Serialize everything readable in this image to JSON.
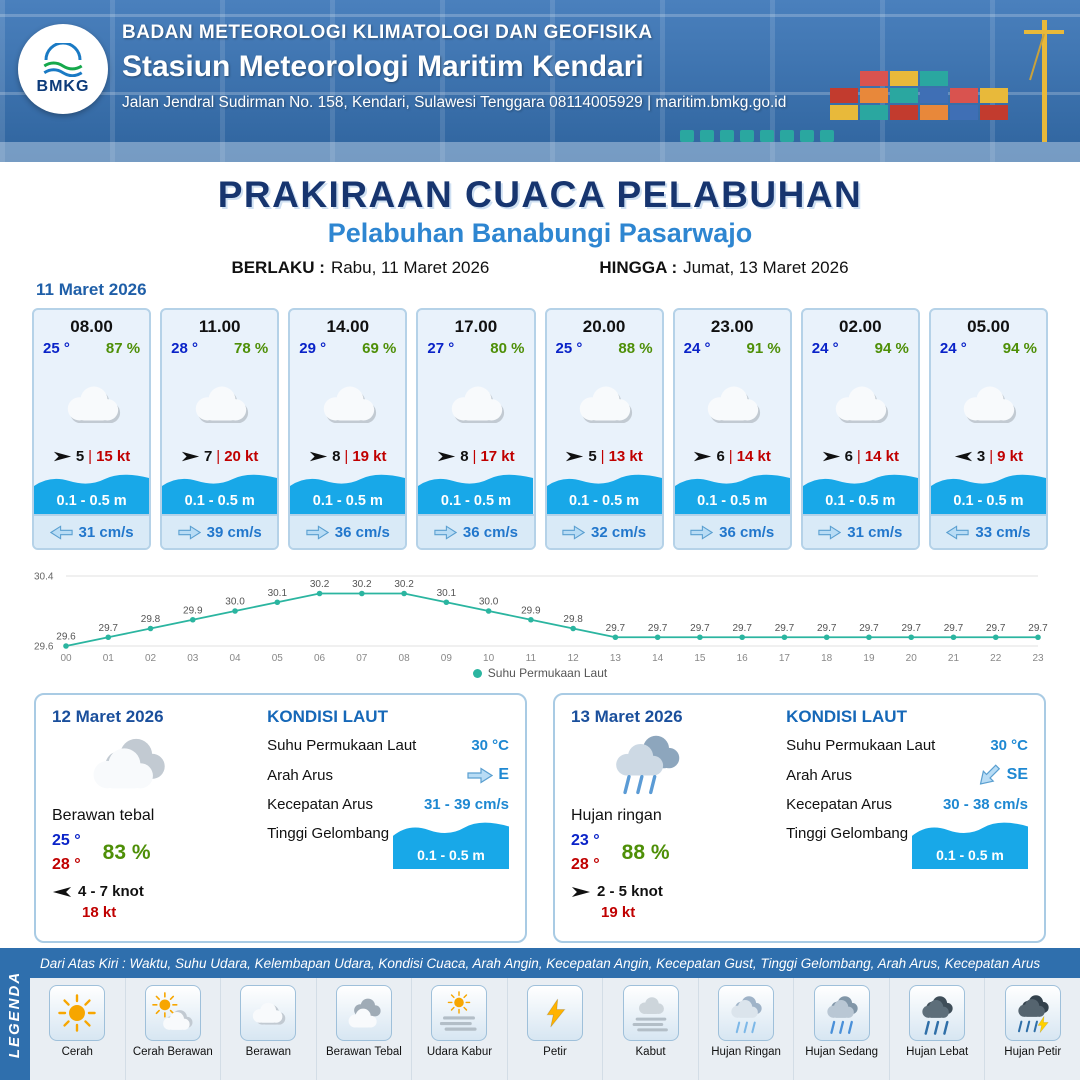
{
  "header": {
    "logo_text": "BMKG",
    "agency": "BADAN METEOROLOGI KLIMATOLOGI DAN GEOFISIKA",
    "station": "Stasiun Meteorologi Maritim Kendari",
    "address": "Jalan Jendral Sudirman No. 158, Kendari, Sulawesi Tenggara  08114005929 | maritim.bmkg.go.id"
  },
  "title": {
    "main": "PRAKIRAAN CUACA PELABUHAN",
    "port": "Pelabuhan Banabungi Pasarwajo",
    "valid_label": "BERLAKU :",
    "valid_value": "Rabu, 11 Maret 2026",
    "until_label": "HINGGA :",
    "until_value": "Jumat, 13 Maret 2026"
  },
  "hourly": {
    "date": "11 Maret 2026",
    "cards": [
      {
        "time": "08.00",
        "temp": "25 °",
        "humidity": "87 %",
        "wind_speed": "5",
        "wind_gust": "15 kt",
        "wind_arrow": "right",
        "wave": "0.1 - 0.5 m",
        "current": "31 cm/s",
        "current_arrow": "left"
      },
      {
        "time": "11.00",
        "temp": "28 °",
        "humidity": "78 %",
        "wind_speed": "7",
        "wind_gust": "20 kt",
        "wind_arrow": "right",
        "wave": "0.1 - 0.5 m",
        "current": "39 cm/s",
        "current_arrow": "right"
      },
      {
        "time": "14.00",
        "temp": "29 °",
        "humidity": "69 %",
        "wind_speed": "8",
        "wind_gust": "19 kt",
        "wind_arrow": "right",
        "wave": "0.1 - 0.5 m",
        "current": "36 cm/s",
        "current_arrow": "right"
      },
      {
        "time": "17.00",
        "temp": "27 °",
        "humidity": "80 %",
        "wind_speed": "8",
        "wind_gust": "17 kt",
        "wind_arrow": "right",
        "wave": "0.1 - 0.5 m",
        "current": "36 cm/s",
        "current_arrow": "right"
      },
      {
        "time": "20.00",
        "temp": "25 °",
        "humidity": "88 %",
        "wind_speed": "5",
        "wind_gust": "13 kt",
        "wind_arrow": "right",
        "wave": "0.1 - 0.5 m",
        "current": "32 cm/s",
        "current_arrow": "right"
      },
      {
        "time": "23.00",
        "temp": "24 °",
        "humidity": "91 %",
        "wind_speed": "6",
        "wind_gust": "14 kt",
        "wind_arrow": "right",
        "wave": "0.1 - 0.5 m",
        "current": "36 cm/s",
        "current_arrow": "right"
      },
      {
        "time": "02.00",
        "temp": "24 °",
        "humidity": "94 %",
        "wind_speed": "6",
        "wind_gust": "14 kt",
        "wind_arrow": "right",
        "wave": "0.1 - 0.5 m",
        "current": "31 cm/s",
        "current_arrow": "right"
      },
      {
        "time": "05.00",
        "temp": "24 °",
        "humidity": "94 %",
        "wind_speed": "3",
        "wind_gust": "9 kt",
        "wind_arrow": "left",
        "wave": "0.1 - 0.5 m",
        "current": "33 cm/s",
        "current_arrow": "left"
      }
    ]
  },
  "chart_data": {
    "type": "line",
    "title": "Suhu Permukaan Laut",
    "legend": "Suhu Permukaan Laut",
    "x": [
      "00",
      "01",
      "02",
      "03",
      "04",
      "05",
      "06",
      "07",
      "08",
      "09",
      "10",
      "11",
      "12",
      "13",
      "14",
      "15",
      "16",
      "17",
      "18",
      "19",
      "20",
      "21",
      "22",
      "23"
    ],
    "values": [
      29.6,
      29.7,
      29.8,
      29.9,
      30.0,
      30.1,
      30.2,
      30.2,
      30.2,
      30.1,
      30.0,
      29.9,
      29.8,
      29.7,
      29.7,
      29.7,
      29.7,
      29.7,
      29.7,
      29.7,
      29.7,
      29.7,
      29.7,
      29.7
    ],
    "ylim": [
      29.6,
      30.4
    ],
    "line_color": "#2bb5a0",
    "grid": true,
    "legend_position": "bottom"
  },
  "daily": {
    "cards": [
      {
        "date": "12 Maret 2026",
        "icon": "thick-cloud",
        "condition": "Berawan tebal",
        "temp_min": "25 °",
        "temp_max": "28 °",
        "humidity": "83 %",
        "wind_range": "4  - 7 knot",
        "wind_arrow": "left",
        "gust": "18 kt",
        "sea": {
          "title": "KONDISI LAUT",
          "sst_label": "Suhu Permukaan Laut",
          "sst_value": "30 °C",
          "dir_label": "Arah Arus",
          "dir_value": "E",
          "speed_label": "Kecepatan Arus",
          "speed_value": "31 - 39 cm/s",
          "wave_label": "Tinggi Gelombang",
          "wave_value": "0.1 - 0.5 m"
        }
      },
      {
        "date": "13 Maret 2026",
        "icon": "light-rain",
        "condition": "Hujan ringan",
        "temp_min": "23 °",
        "temp_max": "28 °",
        "humidity": "88 %",
        "wind_range": "2  - 5 knot",
        "wind_arrow": "right",
        "gust": "19 kt",
        "sea": {
          "title": "KONDISI LAUT",
          "sst_label": "Suhu Permukaan Laut",
          "sst_value": "30 °C",
          "dir_label": "Arah Arus",
          "dir_value": "SE",
          "speed_label": "Kecepatan Arus",
          "speed_value": "30 - 38 cm/s",
          "wave_label": "Tinggi Gelombang",
          "wave_value": "0.1 - 0.5 m"
        }
      }
    ]
  },
  "legend": {
    "title": "LEGENDA",
    "note": "Dari Atas Kiri : Waktu, Suhu Udara, Kelembapan Udara, Kondisi Cuaca, Arah Angin, Kecepatan Angin, Kecepatan Gust, Tinggi Gelombang, Arah Arus, Kecepatan Arus",
    "items": [
      {
        "label": "Cerah",
        "icon": "sun"
      },
      {
        "label": "Cerah Berawan",
        "icon": "sun-cloud"
      },
      {
        "label": "Berawan",
        "icon": "cloud"
      },
      {
        "label": "Berawan Tebal",
        "icon": "thick-cloud"
      },
      {
        "label": "Udara Kabur",
        "icon": "haze"
      },
      {
        "label": "Petir",
        "icon": "lightning"
      },
      {
        "label": "Kabut",
        "icon": "fog"
      },
      {
        "label": "Hujan Ringan",
        "icon": "light-rain"
      },
      {
        "label": "Hujan Sedang",
        "icon": "moderate-rain"
      },
      {
        "label": "Hujan Lebat",
        "icon": "heavy-rain"
      },
      {
        "label": "Hujan Petir",
        "icon": "thunder-rain"
      }
    ]
  },
  "colors": {
    "accent_blue": "#1e88d2",
    "wave_blue": "#18a8e8",
    "temp_blue": "#0a23c8",
    "humidity_green": "#4e8f07",
    "wind_red": "#c00000",
    "sst_line": "#2bb5a0",
    "header_blue": "#3a72b0"
  }
}
